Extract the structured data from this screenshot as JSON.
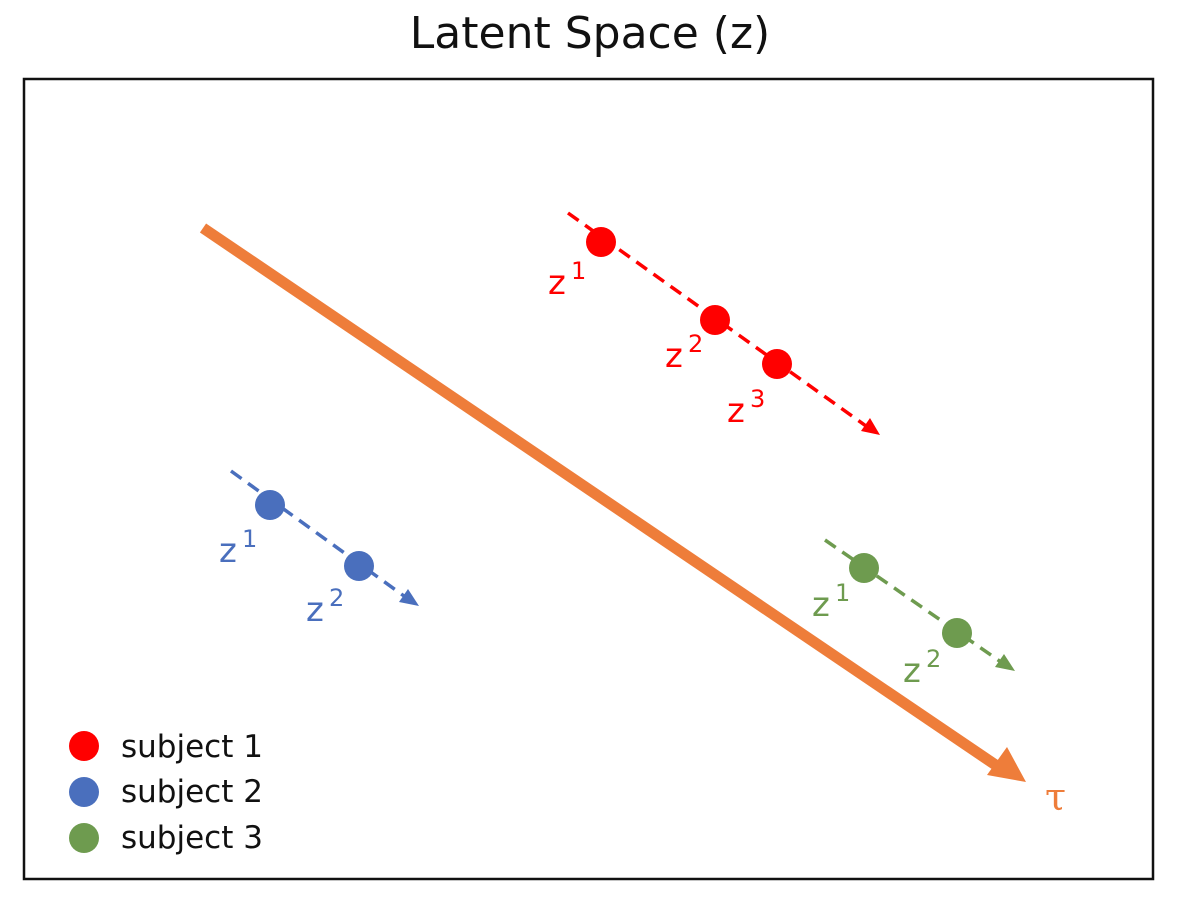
{
  "title": "Latent Space (z)",
  "colors": {
    "subject1": "#ff0000",
    "subject2": "#4a6fbd",
    "subject3": "#6e9b4f",
    "tau": "#ee7d3a",
    "frame": "#111111"
  },
  "tau": {
    "label": "τ"
  },
  "subjects": [
    {
      "legend": "subject 1",
      "color_key": "subject1",
      "points": [
        {
          "base": "z",
          "sup": "1"
        },
        {
          "base": "z",
          "sup": "2"
        },
        {
          "base": "z",
          "sup": "3"
        }
      ]
    },
    {
      "legend": "subject 2",
      "color_key": "subject2",
      "points": [
        {
          "base": "z",
          "sup": "1"
        },
        {
          "base": "z",
          "sup": "2"
        }
      ]
    },
    {
      "legend": "subject 3",
      "color_key": "subject3",
      "points": [
        {
          "base": "z",
          "sup": "1"
        },
        {
          "base": "z",
          "sup": "2"
        }
      ]
    }
  ]
}
